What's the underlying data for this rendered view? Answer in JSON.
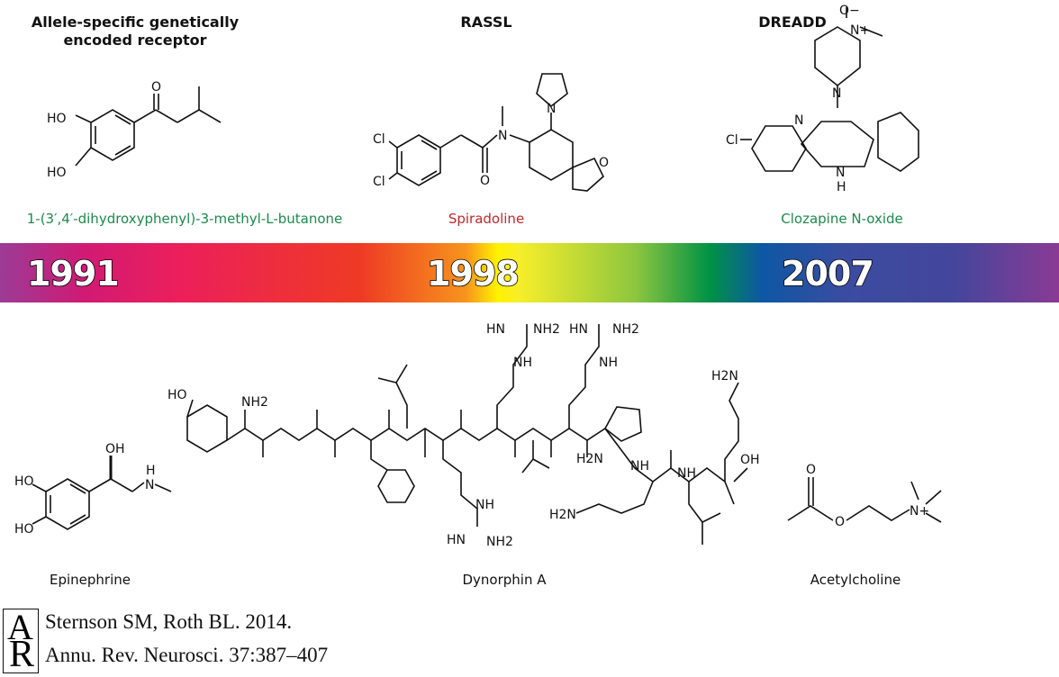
{
  "headings": {
    "asger": "Allele-specific genetically encoded receptor",
    "rassl": "RASSL",
    "dreadd": "DREADD"
  },
  "ligands": {
    "asger": {
      "name": "1-(3′,4′-dihydroxyphenyl)-3-methyl-L-butanone",
      "color": "#1b8a4c",
      "atoms": [
        "HO",
        "HO",
        "O"
      ]
    },
    "rassl": {
      "name": "Spiradoline",
      "color": "#c1272d",
      "atoms": [
        "Cl",
        "Cl",
        "N",
        "O",
        "N",
        "O"
      ]
    },
    "dreadd": {
      "name": "Clozapine N-oxide",
      "color": "#1b8a4c",
      "atoms": [
        "O−",
        "N+",
        "N",
        "N",
        "Cl",
        "N",
        "H"
      ]
    }
  },
  "timeline": {
    "years": [
      "1991",
      "1998",
      "2007"
    ],
    "gradient_colors": [
      "#9b3b96",
      "#ec1f5a",
      "#ee3a24",
      "#f7941d",
      "#fff200",
      "#8dc63f",
      "#009245",
      "#0e57a4",
      "#3b4ca0",
      "#8a3a94"
    ]
  },
  "natives": {
    "epinephrine": {
      "name": "Epinephrine",
      "atoms": [
        "OH",
        "HO",
        "HO",
        "N",
        "H"
      ]
    },
    "dynorphin": {
      "name": "Dynorphin A",
      "atoms": [
        "HO",
        "NH2",
        "HN",
        "NH2",
        "NH",
        "HN",
        "NH2",
        "NH",
        "H2N",
        "NH",
        "H2N",
        "NH",
        "OH",
        "NH",
        "HN",
        "NH2",
        "H2N"
      ]
    },
    "acetylcholine": {
      "name": "Acetylcholine",
      "atoms": [
        "O",
        "O",
        "N+"
      ]
    }
  },
  "citation": {
    "logo": "AR",
    "line1": "Sternson SM, Roth BL. 2014.",
    "line2": "Annu. Rev. Neurosci. 37:387–407"
  }
}
